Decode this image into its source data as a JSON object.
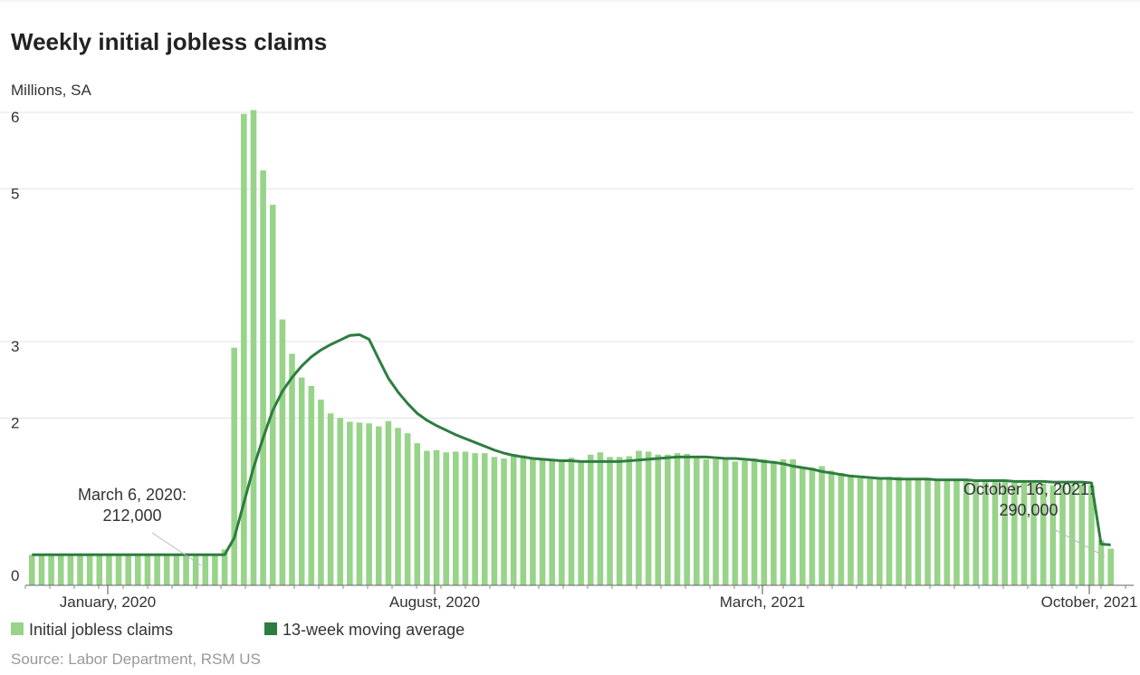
{
  "chart_data": {
    "type": "bar",
    "title": "Weekly initial jobless claims",
    "ylabel": "Millions, SA",
    "y_ticks": [
      {
        "value": 0,
        "label": "0"
      },
      {
        "value": 2,
        "label": "2"
      },
      {
        "value": 3,
        "label": "3"
      },
      {
        "value": 5,
        "label": "5"
      },
      {
        "value": 6,
        "label": "6"
      }
    ],
    "x_ticks": [
      "January, 2020",
      "August, 2020",
      "March, 2021",
      "October, 2021"
    ],
    "grid": true,
    "legend_position": "bottom-left",
    "series": [
      {
        "name": "Initial jobless claims",
        "type": "bar",
        "color": "#98d38a",
        "values": [
          0.21,
          0.21,
          0.21,
          0.22,
          0.21,
          0.21,
          0.21,
          0.21,
          0.21,
          0.21,
          0.21,
          0.21,
          0.21,
          0.21,
          0.21,
          0.21,
          0.21,
          0.21,
          0.21,
          0.212,
          0.28,
          2.92,
          5.98,
          6.03,
          5.24,
          4.79,
          3.29,
          2.84,
          2.53,
          2.42,
          2.24,
          2.06,
          2.0,
          1.95,
          1.94,
          1.93,
          1.89,
          1.96,
          1.87,
          1.8,
          1.67,
          1.57,
          1.58,
          1.55,
          1.56,
          1.56,
          1.54,
          1.54,
          1.49,
          1.47,
          1.53,
          1.51,
          1.48,
          1.47,
          1.45,
          1.45,
          1.48,
          1.43,
          1.52,
          1.55,
          1.49,
          1.49,
          1.5,
          1.57,
          1.56,
          1.52,
          1.52,
          1.54,
          1.53,
          1.47,
          1.46,
          1.46,
          1.47,
          1.43,
          1.44,
          1.47,
          1.46,
          1.41,
          1.46,
          1.46,
          1.36,
          1.35,
          1.37,
          1.31,
          1.28,
          1.25,
          1.21,
          1.2,
          1.2,
          1.23,
          1.23,
          1.2,
          1.2,
          1.2,
          1.2,
          1.2,
          1.2,
          1.19,
          1.18,
          1.17,
          1.17,
          1.16,
          1.15,
          1.15,
          1.15,
          1.14,
          1.12,
          1.13,
          1.13,
          1.13,
          1.12,
          0.4,
          0.29
        ]
      },
      {
        "name": "13-week moving average",
        "type": "line",
        "color": "#2e7d40",
        "values": [
          0.21,
          0.21,
          0.21,
          0.21,
          0.21,
          0.21,
          0.21,
          0.21,
          0.21,
          0.21,
          0.21,
          0.21,
          0.21,
          0.21,
          0.21,
          0.21,
          0.21,
          0.21,
          0.21,
          0.21,
          0.21,
          0.43,
          0.89,
          1.35,
          1.74,
          2.1,
          2.35,
          2.53,
          2.68,
          2.8,
          2.89,
          2.96,
          3.02,
          3.08,
          3.09,
          3.03,
          2.77,
          2.52,
          2.34,
          2.19,
          2.06,
          1.97,
          1.9,
          1.84,
          1.78,
          1.73,
          1.68,
          1.63,
          1.58,
          1.54,
          1.51,
          1.49,
          1.47,
          1.46,
          1.45,
          1.44,
          1.44,
          1.43,
          1.43,
          1.43,
          1.43,
          1.43,
          1.44,
          1.45,
          1.46,
          1.47,
          1.48,
          1.49,
          1.49,
          1.49,
          1.49,
          1.48,
          1.47,
          1.47,
          1.46,
          1.45,
          1.43,
          1.42,
          1.4,
          1.37,
          1.35,
          1.33,
          1.3,
          1.28,
          1.26,
          1.24,
          1.23,
          1.22,
          1.21,
          1.21,
          1.2,
          1.2,
          1.2,
          1.2,
          1.19,
          1.19,
          1.19,
          1.19,
          1.18,
          1.18,
          1.18,
          1.18,
          1.17,
          1.17,
          1.17,
          1.17,
          1.16,
          1.16,
          1.16,
          1.16,
          1.15,
          0.35,
          0.34
        ]
      }
    ],
    "annotations": [
      {
        "date_label": "March 6, 2020:",
        "value_label": "212,000"
      },
      {
        "date_label": "October 16, 2021:",
        "value_label": "290,000"
      }
    ],
    "source": "Source: Labor Department, RSM US"
  }
}
